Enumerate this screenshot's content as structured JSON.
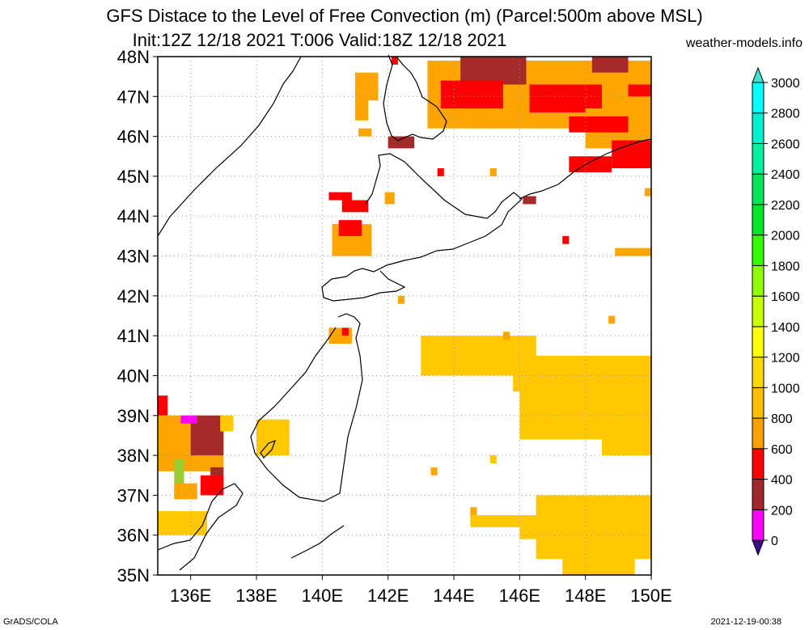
{
  "title_line1": "GFS Distace to the Level of Free Convection (m) (Parcel:500m above MSL)",
  "title_line2": "Init:12Z 12/18 2021 T:006 Valid:18Z 12/18 2021",
  "site": "weather-models.info",
  "footer_left": "GrADS/COLA",
  "footer_right": "2021-12-19-00:38",
  "map": {
    "lon_range": [
      135,
      150
    ],
    "lat_range": [
      35,
      48
    ],
    "lat_labels": [
      "35N",
      "36N",
      "37N",
      "38N",
      "39N",
      "40N",
      "41N",
      "42N",
      "43N",
      "44N",
      "45N",
      "46N",
      "47N",
      "48N"
    ],
    "lon_labels": [
      "136E",
      "138E",
      "140E",
      "142E",
      "144E",
      "146E",
      "148E",
      "150E"
    ],
    "lon_ticks": [
      136,
      138,
      140,
      142,
      144,
      146,
      148,
      150
    ]
  },
  "colorbar": {
    "labels": [
      "0",
      "200",
      "400",
      "600",
      "800",
      "1000",
      "1200",
      "1400",
      "1600",
      "1800",
      "2000",
      "2200",
      "2400",
      "2600",
      "2800",
      "3000"
    ],
    "colors": [
      "#3c0a8c",
      "#ff00ff",
      "#a0282a",
      "#ff0000",
      "#ff9f00",
      "#ffbe00",
      "#ffd700",
      "#ffff00",
      "#c8ff00",
      "#8cff00",
      "#32ff00",
      "#00e628",
      "#00e65a",
      "#00f0a0",
      "#00f0d2",
      "#00ffff"
    ],
    "under_color": "#3c0a8c",
    "over_color": "#40e0d0"
  },
  "field_colors": {
    "orange": "#ffa500",
    "gold": "#ffc800",
    "red": "#ff0000",
    "brown": "#a52a2a",
    "magenta": "#ff00ff",
    "green": "#9acd32"
  }
}
